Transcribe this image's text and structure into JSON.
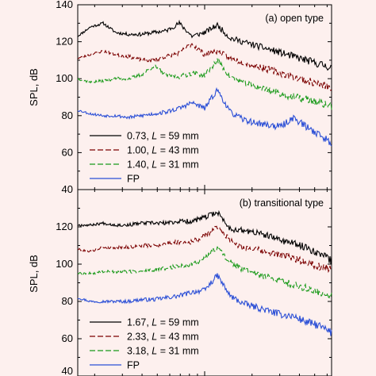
{
  "figure": {
    "ylabel": "SPL, dB"
  },
  "chart_data": [
    {
      "type": "line",
      "title": "(a) open type",
      "ylabel": "SPL, dB",
      "xlabel": "",
      "ylim": [
        40,
        140
      ],
      "yticks": [
        40,
        60,
        80,
        100,
        120,
        140
      ],
      "xscale": "log",
      "grid": false,
      "legend": "bottom-left",
      "legend_entries": [
        {
          "prefix": "0.73, ",
          "italic": "L",
          "suffix": " = 59 mm"
        },
        {
          "prefix": "1.00, ",
          "italic": "L",
          "suffix": " = 43 mm"
        },
        {
          "prefix": "1.40, ",
          "italic": "L",
          "suffix": " = 31 mm"
        },
        {
          "prefix": "FP",
          "italic": "",
          "suffix": ""
        }
      ],
      "series": [
        {
          "color": "#000000",
          "dash": "solid",
          "seed": 11,
          "x": [
            0,
            0.05,
            0.1,
            0.15,
            0.2,
            0.25,
            0.3,
            0.35,
            0.4,
            0.45,
            0.5,
            0.55,
            0.6,
            0.65,
            0.7,
            0.75,
            0.8,
            0.85,
            0.9,
            0.95,
            1.0
          ],
          "values": [
            123,
            128,
            130,
            125,
            124,
            124,
            125,
            126,
            130,
            123,
            125,
            129,
            122,
            120,
            118,
            116,
            114,
            112,
            110,
            108,
            106
          ]
        },
        {
          "color": "#7b0000",
          "dash": "dashed",
          "seed": 23,
          "x": [
            0,
            0.05,
            0.1,
            0.15,
            0.2,
            0.25,
            0.3,
            0.35,
            0.4,
            0.45,
            0.5,
            0.55,
            0.6,
            0.65,
            0.7,
            0.75,
            0.8,
            0.85,
            0.9,
            0.95,
            1.0
          ],
          "values": [
            111,
            113,
            115,
            113,
            112,
            110,
            110,
            112,
            114,
            119,
            113,
            115,
            111,
            109,
            107,
            105,
            103,
            101,
            99,
            97,
            95
          ]
        },
        {
          "color": "#1a9a1a",
          "dash": "dashed",
          "seed": 37,
          "x": [
            0,
            0.05,
            0.1,
            0.15,
            0.2,
            0.25,
            0.3,
            0.35,
            0.4,
            0.45,
            0.5,
            0.55,
            0.6,
            0.65,
            0.7,
            0.75,
            0.8,
            0.85,
            0.9,
            0.95,
            1.0
          ],
          "values": [
            100,
            98,
            99,
            100,
            100,
            102,
            107,
            102,
            101,
            103,
            102,
            110,
            101,
            98,
            96,
            94,
            92,
            90,
            89,
            87,
            85
          ]
        },
        {
          "color": "#2b4fd6",
          "dash": "solid",
          "seed": 53,
          "x": [
            0,
            0.05,
            0.1,
            0.15,
            0.2,
            0.25,
            0.3,
            0.35,
            0.4,
            0.45,
            0.5,
            0.55,
            0.6,
            0.65,
            0.7,
            0.75,
            0.8,
            0.85,
            0.9,
            0.95,
            1.0
          ],
          "values": [
            83,
            81,
            80,
            80,
            79,
            80,
            81,
            82,
            84,
            87,
            84,
            94,
            82,
            78,
            76,
            75,
            74,
            79,
            74,
            70,
            65
          ]
        }
      ]
    },
    {
      "type": "line",
      "title": "(b) transitional type",
      "ylabel": "SPL, dB",
      "xlabel": "",
      "ylim": [
        40,
        140
      ],
      "yticks": [
        40,
        60,
        80,
        100,
        120,
        140
      ],
      "xscale": "log",
      "grid": false,
      "legend": "bottom-left",
      "legend_entries": [
        {
          "prefix": "1.67, ",
          "italic": "L",
          "suffix": " = 59 mm"
        },
        {
          "prefix": "2.33, ",
          "italic": "L",
          "suffix": " = 43 mm"
        },
        {
          "prefix": "3.18, ",
          "italic": "L",
          "suffix": " = 31 mm"
        },
        {
          "prefix": "FP",
          "italic": "",
          "suffix": ""
        }
      ],
      "series": [
        {
          "color": "#000000",
          "dash": "solid",
          "seed": 67,
          "x": [
            0,
            0.05,
            0.1,
            0.15,
            0.2,
            0.25,
            0.3,
            0.35,
            0.4,
            0.45,
            0.5,
            0.55,
            0.6,
            0.65,
            0.7,
            0.75,
            0.8,
            0.85,
            0.9,
            0.95,
            1.0
          ],
          "values": [
            121,
            121,
            122,
            121,
            121,
            122,
            122,
            122,
            123,
            123,
            125,
            128,
            119,
            118,
            117,
            115,
            113,
            111,
            109,
            106,
            102
          ]
        },
        {
          "color": "#7b0000",
          "dash": "dashed",
          "seed": 79,
          "x": [
            0,
            0.05,
            0.1,
            0.15,
            0.2,
            0.25,
            0.3,
            0.35,
            0.4,
            0.45,
            0.5,
            0.55,
            0.6,
            0.65,
            0.7,
            0.75,
            0.8,
            0.85,
            0.9,
            0.95,
            1.0
          ],
          "values": [
            108,
            107,
            109,
            109,
            109,
            110,
            110,
            111,
            112,
            112,
            115,
            120,
            113,
            109,
            108,
            106,
            105,
            103,
            101,
            99,
            97
          ]
        },
        {
          "color": "#1a9a1a",
          "dash": "dashed",
          "seed": 89,
          "x": [
            0,
            0.05,
            0.1,
            0.15,
            0.2,
            0.25,
            0.3,
            0.35,
            0.4,
            0.45,
            0.5,
            0.55,
            0.6,
            0.65,
            0.7,
            0.75,
            0.8,
            0.85,
            0.9,
            0.95,
            1.0
          ],
          "values": [
            95,
            95,
            96,
            96,
            96,
            96,
            97,
            98,
            99,
            100,
            103,
            109,
            101,
            97,
            95,
            93,
            91,
            89,
            87,
            85,
            83
          ]
        },
        {
          "color": "#2b4fd6",
          "dash": "solid",
          "seed": 97,
          "x": [
            0,
            0.05,
            0.1,
            0.15,
            0.2,
            0.25,
            0.3,
            0.35,
            0.4,
            0.45,
            0.5,
            0.55,
            0.6,
            0.65,
            0.7,
            0.75,
            0.8,
            0.85,
            0.9,
            0.95,
            1.0
          ],
          "values": [
            82,
            80,
            80,
            80,
            80,
            81,
            81,
            82,
            83,
            85,
            86,
            94,
            83,
            79,
            77,
            75,
            73,
            72,
            69,
            67,
            63
          ]
        }
      ]
    }
  ]
}
